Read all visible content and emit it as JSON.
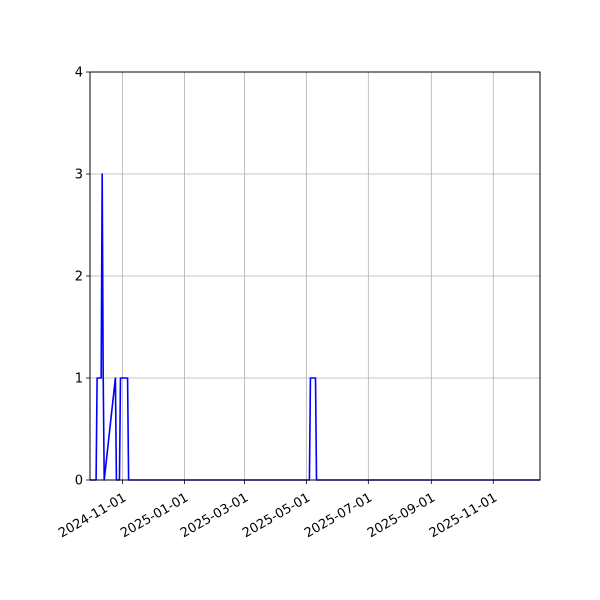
{
  "chart_data": {
    "type": "line",
    "title": "",
    "xlabel": "",
    "ylabel": "",
    "grid": true,
    "line_color": "#0000ff",
    "x_range": [
      "2024-09-30",
      "2025-12-17"
    ],
    "ylim": [
      0,
      4
    ],
    "y_ticks": [
      0,
      1,
      2,
      3,
      4
    ],
    "x_ticks": [
      "2024-11-01",
      "2025-01-01",
      "2025-03-01",
      "2025-05-01",
      "2025-07-01",
      "2025-09-01",
      "2025-11-01"
    ],
    "series": [
      {
        "x": [
          "2024-09-30",
          "2024-10-06",
          "2024-10-07",
          "2024-10-11",
          "2024-10-12",
          "2024-10-13",
          "2024-10-14",
          "2024-10-25",
          "2024-10-26",
          "2024-10-29",
          "2024-10-30",
          "2024-11-05",
          "2024-11-06",
          "2024-11-07",
          "2025-05-04",
          "2025-05-05",
          "2025-05-10",
          "2025-05-11",
          "2025-12-17"
        ],
        "y": [
          0,
          0,
          1,
          1,
          3,
          1,
          0,
          1,
          0,
          0,
          1,
          1,
          1,
          0,
          0,
          1,
          1,
          0,
          0
        ]
      }
    ]
  }
}
